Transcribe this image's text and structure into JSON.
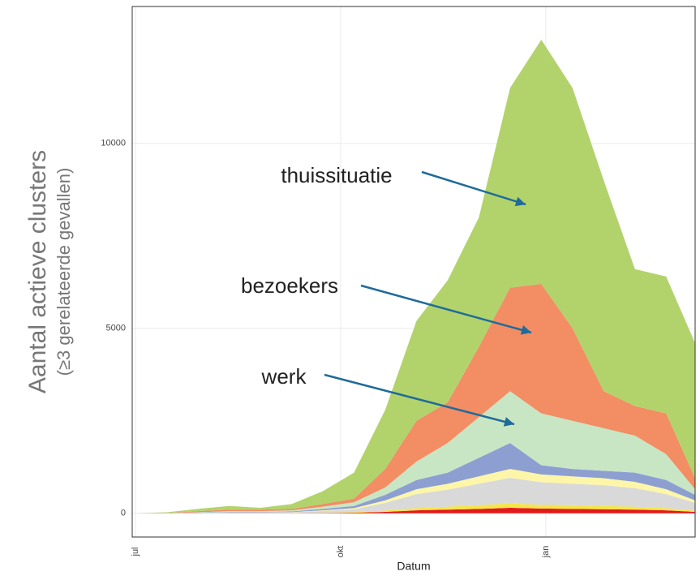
{
  "chart_data": {
    "type": "stacked_area",
    "ylabel": [
      "Aantal actieve clusters",
      "(≥3 gerelateerde gevallen)"
    ],
    "xlabel": "Datum",
    "x": [
      0,
      14,
      28,
      42,
      56,
      70,
      84,
      98,
      112,
      126,
      140,
      154,
      168,
      182,
      196,
      210,
      224,
      238,
      251
    ],
    "xlim": [
      -1.5,
      251
    ],
    "xticks": [
      {
        "value": 0,
        "label": "jul"
      },
      {
        "value": 92,
        "label": "okt"
      },
      {
        "value": 184,
        "label": "jan"
      }
    ],
    "ylim": [
      -640,
      13700
    ],
    "yticks": [
      0,
      5000,
      10000
    ],
    "grid": true,
    "series": [
      {
        "color": "#e31a1c",
        "values": [
          0,
          0,
          1,
          3,
          3,
          4,
          10,
          17,
          40,
          80,
          100,
          120,
          150,
          130,
          120,
          110,
          100,
          80,
          40
        ]
      },
      {
        "color": "#f5e54a",
        "values": [
          0,
          0,
          1,
          2,
          2,
          3,
          8,
          14,
          35,
          60,
          80,
          100,
          120,
          100,
          100,
          90,
          80,
          60,
          30
        ]
      },
      {
        "color": "#d9d9d9",
        "values": [
          0,
          1,
          6,
          15,
          15,
          21,
          46,
          81,
          205,
          380,
          460,
          580,
          690,
          610,
          580,
          560,
          500,
          380,
          210
        ]
      },
      {
        "color": "#fdf6a8",
        "values": [
          0,
          1,
          2,
          5,
          5,
          7,
          16,
          28,
          70,
          130,
          160,
          200,
          240,
          210,
          200,
          190,
          170,
          130,
          70
        ]
      },
      {
        "color": "#8d9fd1",
        "values": [
          0,
          1,
          10,
          15,
          15,
          15,
          40,
          60,
          150,
          250,
          300,
          500,
          700,
          250,
          200,
          200,
          250,
          250,
          150
        ]
      },
      {
        "name": "werk",
        "color": "#c8e6c4",
        "values": [
          0,
          2,
          10,
          20,
          20,
          30,
          60,
          100,
          200,
          500,
          800,
          1100,
          1400,
          1400,
          1300,
          1150,
          1000,
          700,
          150
        ]
      },
      {
        "name": "bezoekers",
        "color": "#f28d64",
        "values": [
          0,
          5,
          30,
          40,
          40,
          40,
          70,
          100,
          500,
          1100,
          1100,
          1900,
          2800,
          3500,
          2500,
          1000,
          800,
          1100,
          300
        ]
      },
      {
        "name": "thuissituatie",
        "color": "#b2d36b",
        "values": [
          0,
          20,
          60,
          100,
          50,
          130,
          350,
          700,
          1600,
          2700,
          3300,
          3500,
          5400,
          6600,
          6500,
          5700,
          3700,
          3700,
          3650
        ]
      }
    ]
  }
}
